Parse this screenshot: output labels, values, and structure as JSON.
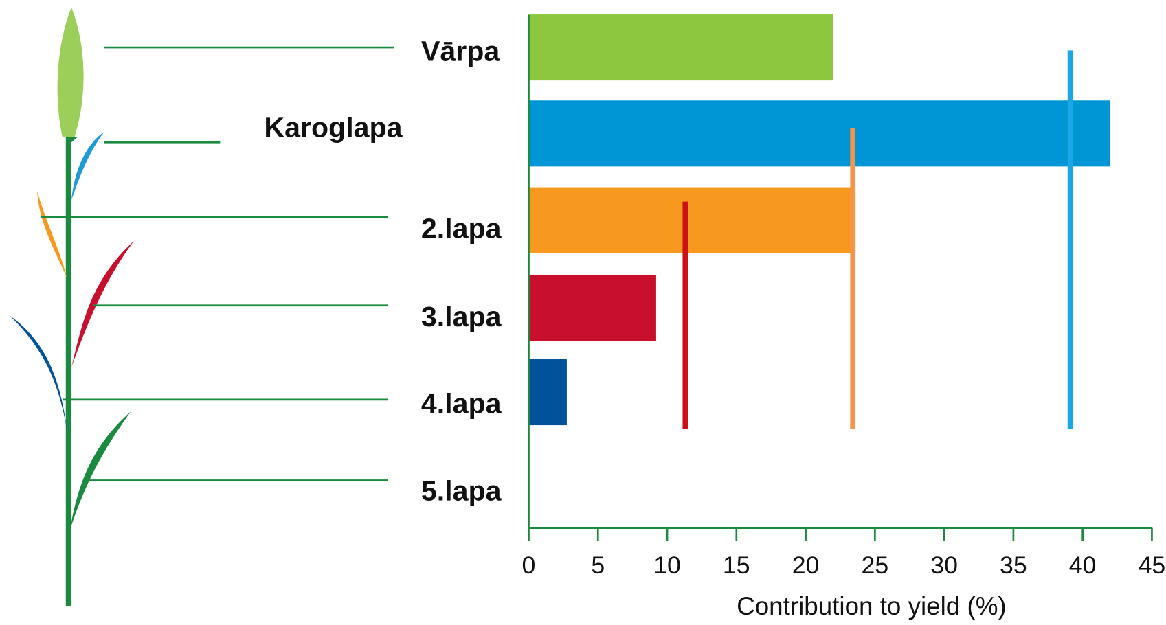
{
  "chart_data": {
    "type": "bar",
    "orientation": "horizontal",
    "categories": [
      "Vārpa",
      "Karoglapa",
      "2.lapa",
      "3.lapa",
      "4.lapa",
      "5.lapa"
    ],
    "values": [
      22,
      42,
      23.6,
      9.2,
      2.75,
      null
    ],
    "colors": [
      "#8dc63f",
      "#0096d6",
      "#f7991f",
      "#c8102e",
      "#00529b",
      "#0a8a3c"
    ],
    "reference_lines": [
      {
        "value": 11.3,
        "color": "#cc1016"
      },
      {
        "value": 23.4,
        "color": "#f7944a"
      },
      {
        "value": 39.1,
        "color": "#1aa7e6"
      }
    ],
    "xlabel": "Contribution to yield (%)",
    "xlim": [
      0,
      45
    ],
    "xticks": [
      0,
      5,
      10,
      15,
      20,
      25,
      30,
      35,
      40,
      45
    ]
  }
}
